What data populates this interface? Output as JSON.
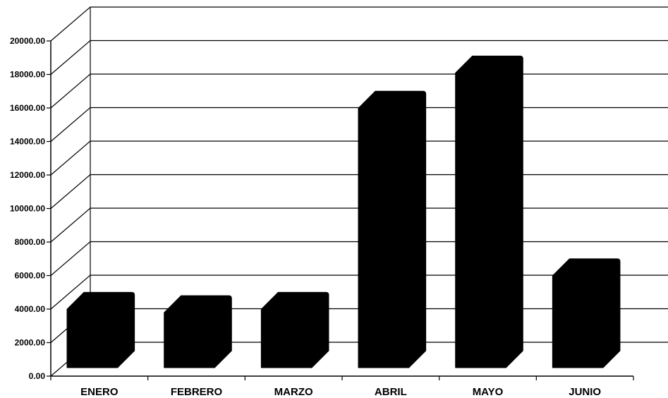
{
  "chart_data": {
    "type": "bar",
    "style": "3d-column",
    "categories": [
      "ENERO",
      "FEBRERO",
      "MARZO",
      "ABRIL",
      "MAYO",
      "JUNIO"
    ],
    "values": [
      5000,
      4800,
      5000,
      17000,
      19100,
      7000
    ],
    "y_ticks": [
      "0.00",
      "2000.00",
      "4000.00",
      "6000.00",
      "8000.00",
      "10000.00",
      "12000.00",
      "14000.00",
      "16000.00",
      "18000.00",
      "20000.00"
    ],
    "ylim": [
      0,
      20000
    ],
    "grid": true,
    "legend": "none",
    "bar_color": "#000000",
    "gridline_color": "#000000",
    "background_color": "#ffffff"
  }
}
